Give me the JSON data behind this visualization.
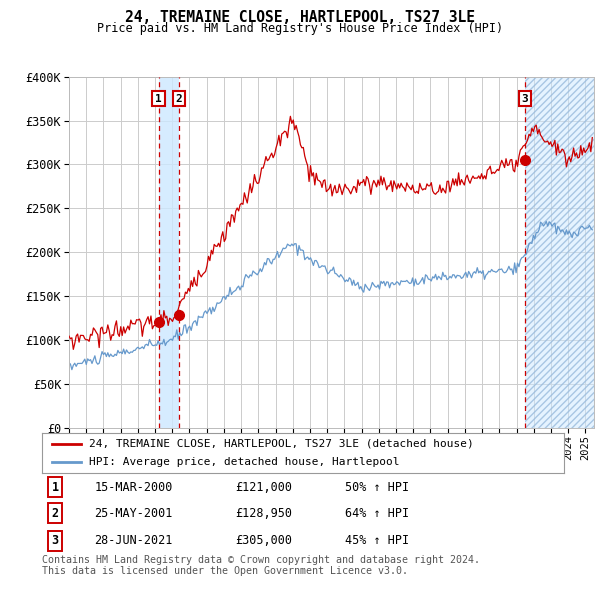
{
  "title": "24, TREMAINE CLOSE, HARTLEPOOL, TS27 3LE",
  "subtitle": "Price paid vs. HM Land Registry's House Price Index (HPI)",
  "ylim": [
    0,
    400000
  ],
  "yticks": [
    0,
    50000,
    100000,
    150000,
    200000,
    250000,
    300000,
    350000,
    400000
  ],
  "ytick_labels": [
    "£0",
    "£50K",
    "£100K",
    "£150K",
    "£200K",
    "£250K",
    "£300K",
    "£350K",
    "£400K"
  ],
  "xlim_start": 1995.0,
  "xlim_end": 2025.5,
  "sale_dates": [
    2000.208,
    2001.392,
    2021.483
  ],
  "sale_prices": [
    121000,
    128950,
    305000
  ],
  "sale_labels": [
    "1",
    "2",
    "3"
  ],
  "sale_pct_hpi": [
    "50% ↑ HPI",
    "64% ↑ HPI",
    "45% ↑ HPI"
  ],
  "sale_date_strs": [
    "15-MAR-2000",
    "25-MAY-2001",
    "28-JUN-2021"
  ],
  "sale_price_strs": [
    "£121,000",
    "£128,950",
    "£305,000"
  ],
  "legend_label_red": "24, TREMAINE CLOSE, HARTLEPOOL, TS27 3LE (detached house)",
  "legend_label_blue": "HPI: Average price, detached house, Hartlepool",
  "footer": "Contains HM Land Registry data © Crown copyright and database right 2024.\nThis data is licensed under the Open Government Licence v3.0.",
  "red_color": "#cc0000",
  "blue_color": "#6699cc",
  "bg_color": "#ffffff",
  "grid_color": "#cccccc"
}
